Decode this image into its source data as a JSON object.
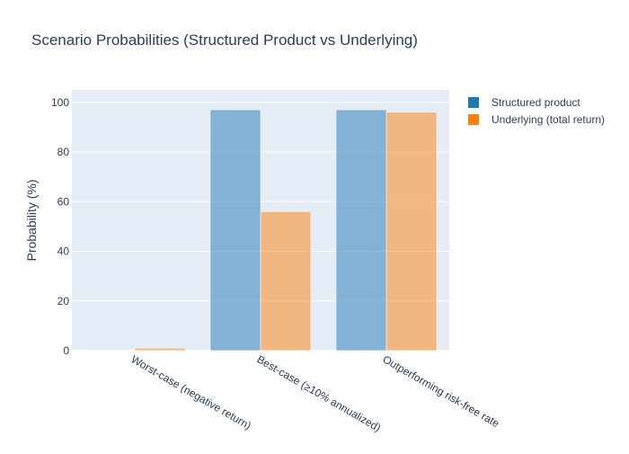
{
  "chart_data": {
    "type": "bar",
    "title": "Scenario Probabilities (Structured Product vs Underlying)",
    "xlabel": "",
    "ylabel": "Probability (%)",
    "ylim": [
      0,
      105
    ],
    "yticks": [
      0,
      20,
      40,
      60,
      80,
      100
    ],
    "categories": [
      "Worst-case (negative return)",
      "Best-case (≥10% annualized)",
      "Outperforming risk-free rate"
    ],
    "series": [
      {
        "name": "Structured product",
        "color": "#1f77b4",
        "values": [
          0,
          97,
          97
        ]
      },
      {
        "name": "Underlying (total return)",
        "color": "#ff7f0e",
        "values": [
          1,
          56,
          96
        ]
      }
    ],
    "grid": true,
    "legend": "top-right",
    "plot_background": "#e5ecf6"
  }
}
